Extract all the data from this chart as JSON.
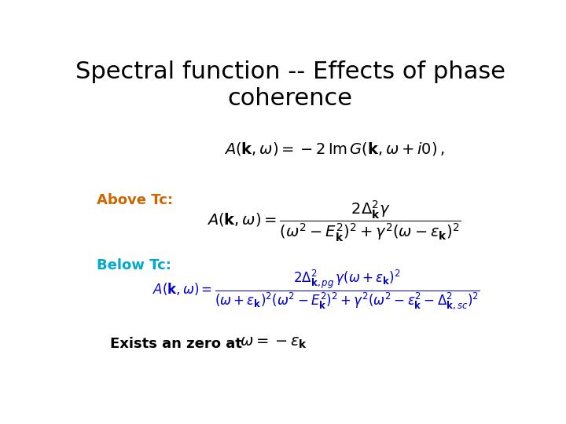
{
  "title": "Spectral function -- Effects of phase\ncoherence",
  "title_fontsize": 22,
  "title_color": "#000000",
  "background_color": "#ffffff",
  "above_tc_label": "Above Tc:",
  "above_tc_color": "#cc6600",
  "below_tc_label": "Below Tc:",
  "below_tc_color": "#00aacc",
  "exists_label": "Exists an zero at",
  "exists_color": "#000000",
  "general_eq": "$A(\\mathbf{k},\\omega) = -2\\,\\mathrm{Im}\\,G(\\mathbf{k},\\omega + i0)\\,,$",
  "above_eq": "$A(\\mathbf{k},\\omega) = \\dfrac{2\\Delta_{\\mathbf{k}}^{2}\\gamma}{(\\omega^{2}-E_{\\mathbf{k}}^{2})^{2}+\\gamma^{2}(\\omega-\\epsilon_{\\mathbf{k}})^{2}}$",
  "below_eq": "$A(\\mathbf{k},\\omega) = \\dfrac{2\\Delta_{\\mathbf{k},pg}^{2}\\,\\gamma(\\omega+\\epsilon_{\\mathbf{k}})^{2}}{(\\omega+\\epsilon_{\\mathbf{k}})^{2}(\\omega^{2}-E_{\\mathbf{k}}^{2})^{2}+\\gamma^{2}(\\omega^{2}-\\epsilon_{\\mathbf{k}}^{2}-\\Delta_{\\mathbf{k},sc}^{2})^{2}}$",
  "zero_eq": "$\\omega = -\\epsilon_{\\mathbf{k}}$",
  "below_eq_color": "#0000cc",
  "zero_eq_color": "#000000",
  "label_fontsize": 13,
  "eq_fontsize": 14,
  "below_eq_fontsize": 12,
  "zero_label_fontsize": 13
}
